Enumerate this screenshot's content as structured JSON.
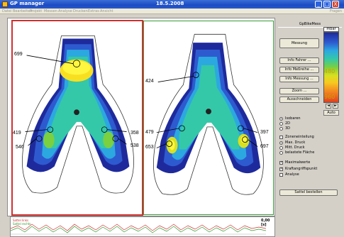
{
  "window": {
    "title": "GP manager",
    "date": "18.5.2008",
    "min_glyph": "_",
    "max_glyph": "□",
    "close_glyph": "X"
  },
  "menu": [
    "Datei",
    "Bearbeiten",
    "Projekt",
    "Messen",
    "Analyse",
    "Drucken",
    "Extras",
    "Ansicht"
  ],
  "menu_right": "Fragen",
  "left_map": {
    "values": [
      "699",
      "419",
      "546",
      "358",
      "538"
    ]
  },
  "right_map": {
    "values": [
      "424",
      "479",
      "653",
      "397",
      "697"
    ]
  },
  "sidebar": {
    "group_label": "GpBikeMess",
    "measure_button": "Messung",
    "info_rider": "Info Fahrer ...",
    "info_series": "Info Meßreihe ...",
    "info_measure": "Info Messung ...",
    "zoom": "Zoom ...",
    "cut": "Ausschneiden",
    "view_options": [
      "Isobaren",
      "2D",
      "3D"
    ],
    "zone_check": "Zoneneinteilung",
    "pressure_options": [
      "Max. Druck",
      "Mitt. Druck",
      "belastete Fläche"
    ],
    "check_max": "Maximalwerte",
    "check_force": "Kraftangriffspunkt",
    "check_analysis": "Analyse",
    "saddle_button": "Sattel bestellen",
    "check_mark": "✓"
  },
  "scale": {
    "unit": "mbar",
    "labels": [
      "480",
      "960"
    ],
    "arrow_left": "◄",
    "arrow_right": "►",
    "auto": "Auto",
    "colors": [
      "#1e2a9c",
      "#2e5ad0",
      "#2ca8e0",
      "#34c8a8",
      "#7ad040",
      "#d8e020",
      "#f8c820",
      "#f28a20",
      "#e04020"
    ]
  },
  "graph": {
    "value": "0,00 [s]",
    "legend": [
      "Sattel links",
      "Sattel rechts"
    ]
  }
}
